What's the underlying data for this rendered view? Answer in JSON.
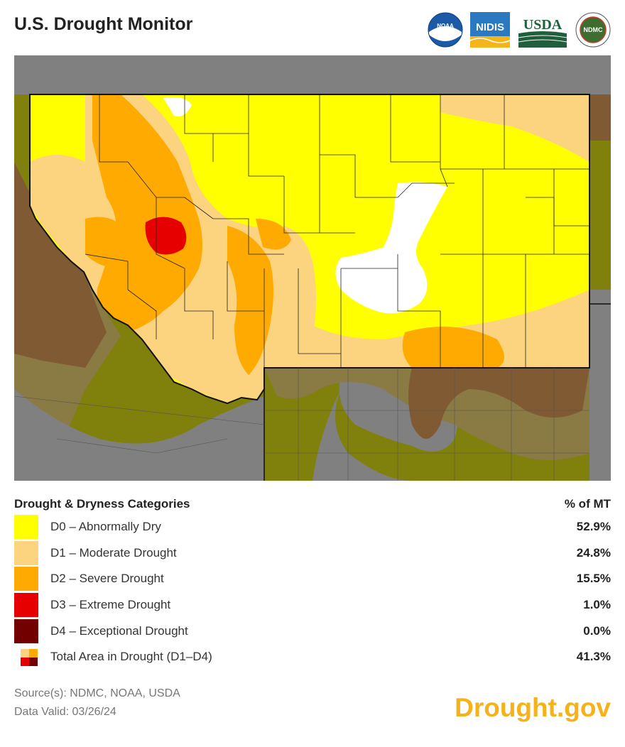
{
  "header": {
    "title": "U.S. Drought Monitor",
    "logos": [
      {
        "icon": "noaa-logo",
        "text": "NOAA"
      },
      {
        "icon": "nidis-logo",
        "text": "NIDIS"
      },
      {
        "icon": "usda-logo",
        "text": "USDA"
      },
      {
        "icon": "ndmc-logo",
        "text": "NDMC"
      }
    ]
  },
  "legend": {
    "heading": "Drought & Dryness Categories",
    "pct_heading": "% of MT",
    "items": [
      {
        "label": "D0 – Abnormally Dry",
        "pct": "52.9%",
        "color": "#ffff00"
      },
      {
        "label": "D1 – Moderate Drought",
        "pct": "24.8%",
        "color": "#fcd37f"
      },
      {
        "label": "D2 – Severe Drought",
        "pct": "15.5%",
        "color": "#ffaa00"
      },
      {
        "label": "D3 – Extreme Drought",
        "pct": "1.0%",
        "color": "#e60000"
      },
      {
        "label": "D4 – Exceptional Drought",
        "pct": "0.0%",
        "color": "#730000"
      },
      {
        "label": "Total Area in Drought (D1–D4)",
        "pct": "41.3%",
        "color": "multi"
      }
    ]
  },
  "footer": {
    "source": "Source(s): NDMC, NOAA, USDA",
    "valid": "Data Valid: 03/26/24",
    "brand": "Drought.gov",
    "brand_color": "#f5b21b"
  },
  "map": {
    "colors": {
      "none": "#ffffff",
      "d0": "#ffff00",
      "d1": "#fcd37f",
      "d2": "#ffaa00",
      "d3": "#e60000",
      "outside_base": "#808080",
      "outside_d0": "#80800c",
      "outside_d1": "#8a7a44",
      "outside_d2": "#7f5a33"
    }
  }
}
